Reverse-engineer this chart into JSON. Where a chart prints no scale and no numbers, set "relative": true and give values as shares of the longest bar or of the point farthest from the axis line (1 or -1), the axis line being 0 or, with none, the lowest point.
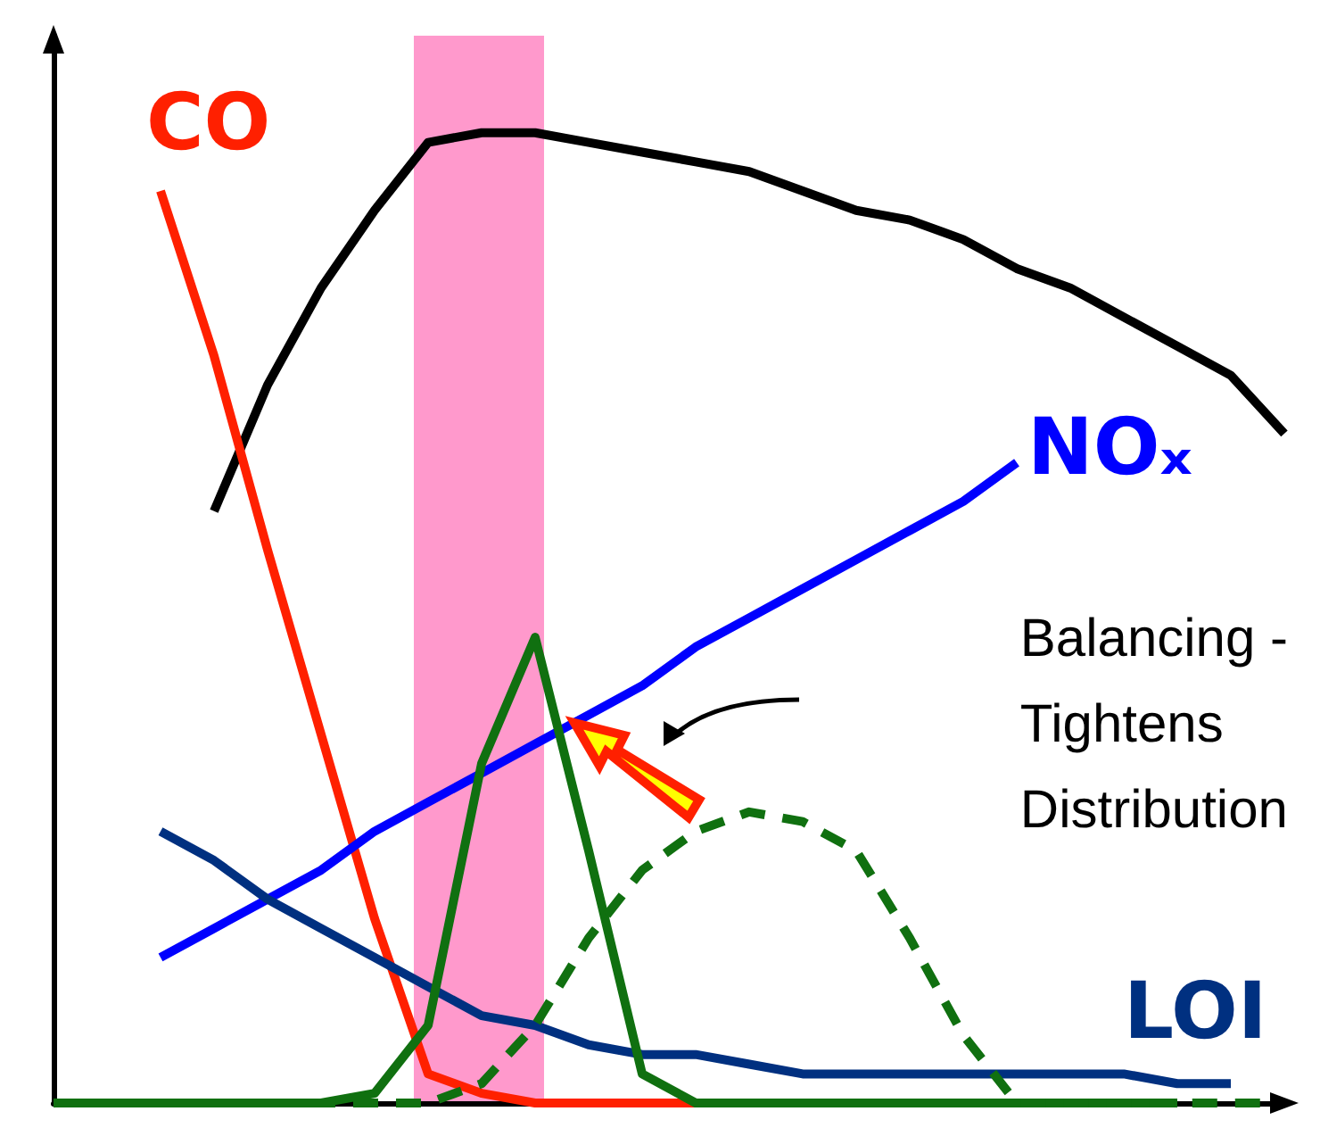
{
  "chart_data": {
    "type": "line",
    "relative": true,
    "grid": false,
    "legend": false,
    "marker": "none",
    "categories": [
      null,
      null,
      null,
      null,
      null,
      null,
      null,
      null,
      null,
      null,
      null,
      null,
      null,
      null,
      null,
      null,
      null,
      null,
      null,
      null,
      null,
      null,
      null,
      null
    ],
    "series": [
      {
        "color": "#000000",
        "values": [
          null,
          null,
          null,
          0.61,
          0.74,
          0.84,
          0.92,
          0.99,
          1.0,
          1.0,
          0.99,
          0.98,
          0.97,
          0.96,
          0.94,
          0.92,
          0.91,
          0.89,
          0.86,
          0.84,
          0.81,
          0.78,
          0.75,
          0.69
        ]
      },
      {
        "name": "CO",
        "color": "#ff2000",
        "values": [
          null,
          null,
          0.94,
          0.77,
          0.57,
          0.38,
          0.19,
          0.03,
          0.01,
          0,
          0,
          0,
          0,
          0,
          null,
          null,
          null,
          null,
          null,
          null,
          null,
          null,
          null,
          null
        ]
      },
      {
        "name": "NOₓ",
        "color": "#0000ff",
        "values": [
          null,
          null,
          0.15,
          0.18,
          0.21,
          0.24,
          0.28,
          0.31,
          0.34,
          0.37,
          0.4,
          0.43,
          0.47,
          0.5,
          0.53,
          0.56,
          0.59,
          0.62,
          0.66,
          null,
          null,
          null,
          null,
          null
        ]
      },
      {
        "name": "LOI",
        "color": "#003080",
        "values": [
          null,
          null,
          0.28,
          0.25,
          0.21,
          0.18,
          0.15,
          0.12,
          0.09,
          0.08,
          0.06,
          0.05,
          0.05,
          0.04,
          0.03,
          0.03,
          0.03,
          0.03,
          0.03,
          0.03,
          0.03,
          0.02,
          0.02,
          null
        ]
      },
      {
        "color": "#107010",
        "values": [
          0,
          0,
          0,
          0,
          0,
          0,
          0.01,
          0.08,
          0.35,
          0.48,
          0.26,
          0.03,
          0,
          0,
          0,
          0,
          0,
          0,
          0,
          0,
          0,
          0,
          null,
          null
        ]
      },
      {
        "color": "#107010",
        "line_style": "dashed",
        "values": [
          0,
          0,
          0,
          0,
          0,
          0,
          0,
          0,
          0.02,
          0.08,
          0.17,
          0.24,
          0.28,
          0.3,
          0.29,
          0.26,
          0.17,
          0.07,
          0,
          0,
          0,
          0,
          0,
          0
        ]
      }
    ],
    "annotations": [
      "Balancing -\nTightens\nDistribution"
    ]
  }
}
